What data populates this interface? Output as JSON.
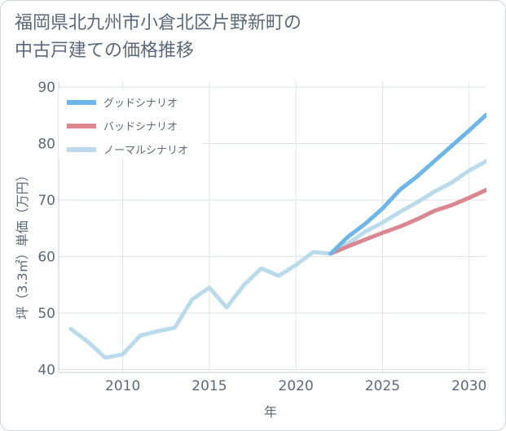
{
  "title": {
    "line1": "福岡県北九州市小倉北区片野新町の",
    "line2": "中古戸建ての価格推移"
  },
  "chart_data": {
    "type": "line",
    "xlabel": "年",
    "ylabel": "坪（3.3㎡）単価（万円）",
    "xlim": [
      2006.3,
      2031
    ],
    "ylim": [
      39.5,
      91
    ],
    "xticks": [
      2010,
      2015,
      2020,
      2025,
      2030
    ],
    "yticks": [
      40,
      50,
      60,
      70,
      80,
      90
    ],
    "grid": true,
    "legend_position": "top-left",
    "series": [
      {
        "name": "グッドシナリオ",
        "color": "#6cb6ec",
        "x": [
          2022,
          2023,
          2024,
          2025,
          2026,
          2027,
          2028,
          2029,
          2030,
          2031
        ],
        "y": [
          60.5,
          63.5,
          65.8,
          68.5,
          71.8,
          74.2,
          76.9,
          79.6,
          82.3,
          85.1
        ]
      },
      {
        "name": "バッドシナリオ",
        "color": "#dc8690",
        "x": [
          2022,
          2023,
          2024,
          2025,
          2026,
          2027,
          2028,
          2029,
          2030,
          2031
        ],
        "y": [
          60.5,
          61.8,
          63.0,
          64.2,
          65.3,
          66.6,
          68.1,
          69.1,
          70.4,
          71.8
        ]
      },
      {
        "name": "ノーマルシナリオ",
        "color": "#b9dbec",
        "x": [
          2007,
          2008,
          2009,
          2010,
          2011,
          2012,
          2013,
          2014,
          2015,
          2016,
          2017,
          2018,
          2019,
          2020,
          2021,
          2022,
          2023,
          2024,
          2025,
          2026,
          2027,
          2028,
          2029,
          2030,
          2031
        ],
        "y": [
          47.2,
          44.9,
          42.1,
          42.7,
          46.0,
          46.8,
          47.4,
          52.4,
          54.5,
          51.0,
          55.0,
          57.9,
          56.6,
          58.5,
          60.8,
          60.5,
          62.3,
          64.4,
          66.0,
          67.9,
          69.6,
          71.5,
          73.1,
          75.2,
          76.9
        ]
      }
    ]
  }
}
